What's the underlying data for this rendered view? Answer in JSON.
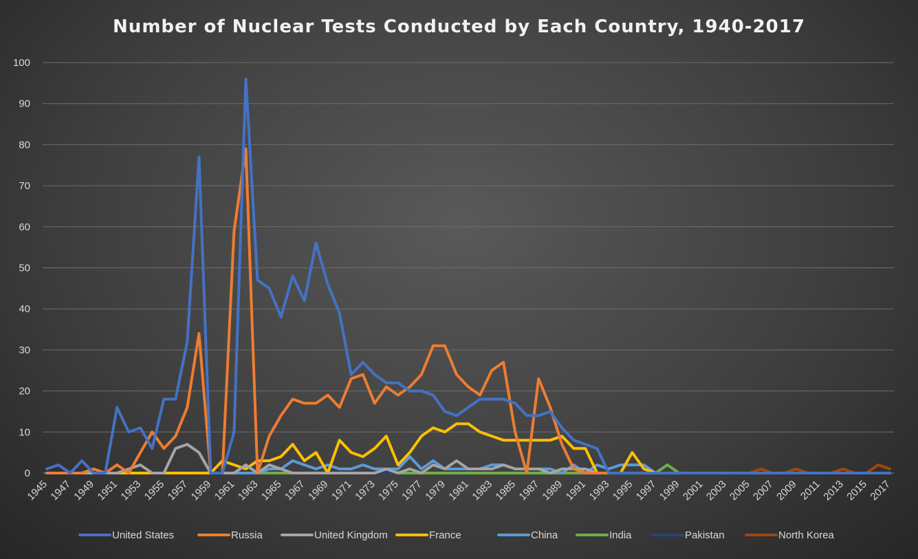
{
  "chart_data": {
    "type": "line",
    "title": "Number of Nuclear Tests Conducted by Each Country, 1940-2017",
    "xlabel": "",
    "ylabel": "",
    "xlim": [
      1945,
      2017
    ],
    "ylim": [
      0,
      100
    ],
    "y_ticks": [
      0,
      10,
      20,
      30,
      40,
      50,
      60,
      70,
      80,
      90,
      100
    ],
    "x_tick_labels": [
      "1945",
      "1947",
      "1949",
      "1951",
      "1953",
      "1955",
      "1957",
      "1959",
      "1961",
      "1963",
      "1965",
      "1967",
      "1969",
      "1971",
      "1973",
      "1975",
      "1977",
      "1979",
      "1981",
      "1983",
      "1985",
      "1987",
      "1989",
      "1991",
      "1993",
      "1995",
      "1997",
      "1999",
      "2001",
      "2003",
      "2005",
      "2007",
      "2009",
      "2011",
      "2013",
      "2015",
      "2017"
    ],
    "grid": "horizontal",
    "legend_position": "bottom",
    "colors": {
      "United States": "#4472c4",
      "Russia": "#ed7d31",
      "United Kingdom": "#a5a5a5",
      "France": "#ffc000",
      "China": "#5b9bd5",
      "India": "#70ad47",
      "Pakistan": "#264478",
      "North Korea": "#9e480e"
    },
    "x": [
      1945,
      1946,
      1947,
      1948,
      1949,
      1950,
      1951,
      1952,
      1953,
      1954,
      1955,
      1956,
      1957,
      1958,
      1959,
      1960,
      1961,
      1962,
      1963,
      1964,
      1965,
      1966,
      1967,
      1968,
      1969,
      1970,
      1971,
      1972,
      1973,
      1974,
      1975,
      1976,
      1977,
      1978,
      1979,
      1980,
      1981,
      1982,
      1983,
      1984,
      1985,
      1986,
      1987,
      1988,
      1989,
      1990,
      1991,
      1992,
      1993,
      1994,
      1995,
      1996,
      1997,
      1998,
      1999,
      2000,
      2001,
      2002,
      2003,
      2004,
      2005,
      2006,
      2007,
      2008,
      2009,
      2010,
      2011,
      2012,
      2013,
      2014,
      2015,
      2016,
      2017
    ],
    "series": [
      {
        "name": "United States",
        "values": [
          1,
          2,
          0,
          3,
          0,
          0,
          16,
          10,
          11,
          6,
          18,
          18,
          32,
          77,
          0,
          0,
          10,
          96,
          47,
          45,
          38,
          48,
          42,
          56,
          46,
          39,
          24,
          27,
          24,
          22,
          22,
          20,
          20,
          19,
          15,
          14,
          16,
          18,
          18,
          18,
          17,
          14,
          14,
          15,
          11,
          8,
          7,
          6,
          0,
          0,
          0,
          0,
          0,
          0,
          0,
          0,
          0,
          0,
          0,
          0,
          0,
          0,
          0,
          0,
          0,
          0,
          0,
          0,
          0,
          0,
          0,
          0,
          0
        ]
      },
      {
        "name": "Russia",
        "values": [
          0,
          0,
          0,
          0,
          1,
          0,
          2,
          0,
          5,
          10,
          6,
          9,
          16,
          34,
          0,
          0,
          59,
          79,
          0,
          9,
          14,
          18,
          17,
          17,
          19,
          16,
          23,
          24,
          17,
          21,
          19,
          21,
          24,
          31,
          31,
          24,
          21,
          19,
          25,
          27,
          10,
          0,
          23,
          16,
          7,
          1,
          0,
          0,
          0,
          0,
          0,
          0,
          0,
          0,
          0,
          0,
          0,
          0,
          0,
          0,
          0,
          0,
          0,
          0,
          0,
          0,
          0,
          0,
          0,
          0,
          0,
          0,
          0
        ]
      },
      {
        "name": "United Kingdom",
        "values": [
          0,
          0,
          0,
          0,
          0,
          0,
          0,
          1,
          2,
          0,
          0,
          6,
          7,
          5,
          0,
          0,
          0,
          2,
          0,
          2,
          1,
          0,
          0,
          0,
          0,
          0,
          0,
          0,
          0,
          1,
          0,
          1,
          0,
          2,
          1,
          3,
          1,
          1,
          1,
          2,
          1,
          1,
          1,
          0,
          1,
          1,
          1,
          0,
          0,
          0,
          0,
          0,
          0,
          0,
          0,
          0,
          0,
          0,
          0,
          0,
          0,
          0,
          0,
          0,
          0,
          0,
          0,
          0,
          0,
          0,
          0,
          0,
          0
        ]
      },
      {
        "name": "France",
        "values": [
          0,
          0,
          0,
          0,
          0,
          0,
          0,
          0,
          0,
          0,
          0,
          0,
          0,
          0,
          0,
          3,
          2,
          1,
          3,
          3,
          4,
          7,
          3,
          5,
          0,
          8,
          5,
          4,
          6,
          9,
          2,
          5,
          9,
          11,
          10,
          12,
          12,
          10,
          9,
          8,
          8,
          8,
          8,
          8,
          9,
          6,
          6,
          0,
          0,
          0,
          5,
          1,
          0,
          0,
          0,
          0,
          0,
          0,
          0,
          0,
          0,
          0,
          0,
          0,
          0,
          0,
          0,
          0,
          0,
          0,
          0,
          0,
          0
        ]
      },
      {
        "name": "China",
        "values": [
          0,
          0,
          0,
          0,
          0,
          0,
          0,
          0,
          0,
          0,
          0,
          0,
          0,
          0,
          0,
          0,
          0,
          0,
          0,
          1,
          1,
          3,
          2,
          1,
          2,
          1,
          1,
          2,
          1,
          1,
          1,
          4,
          1,
          3,
          1,
          1,
          1,
          1,
          2,
          2,
          1,
          1,
          1,
          1,
          0,
          2,
          0,
          2,
          1,
          2,
          2,
          2,
          0,
          0,
          0,
          0,
          0,
          0,
          0,
          0,
          0,
          0,
          0,
          0,
          0,
          0,
          0,
          0,
          0,
          0,
          0,
          0,
          0
        ]
      },
      {
        "name": "India",
        "values": [
          0,
          0,
          0,
          0,
          0,
          0,
          0,
          0,
          0,
          0,
          0,
          0,
          0,
          0,
          0,
          0,
          0,
          0,
          0,
          0,
          0,
          0,
          0,
          0,
          0,
          0,
          0,
          0,
          0,
          1,
          0,
          0,
          0,
          0,
          0,
          0,
          0,
          0,
          0,
          0,
          0,
          0,
          0,
          0,
          0,
          0,
          0,
          0,
          0,
          0,
          0,
          0,
          0,
          2,
          0,
          0,
          0,
          0,
          0,
          0,
          0,
          0,
          0,
          0,
          0,
          0,
          0,
          0,
          0,
          0,
          0,
          0,
          0
        ]
      },
      {
        "name": "Pakistan",
        "values": [
          0,
          0,
          0,
          0,
          0,
          0,
          0,
          0,
          0,
          0,
          0,
          0,
          0,
          0,
          0,
          0,
          0,
          0,
          0,
          0,
          0,
          0,
          0,
          0,
          0,
          0,
          0,
          0,
          0,
          0,
          0,
          0,
          0,
          0,
          0,
          0,
          0,
          0,
          0,
          0,
          0,
          0,
          0,
          0,
          0,
          0,
          0,
          0,
          0,
          0,
          0,
          0,
          0,
          2,
          0,
          0,
          0,
          0,
          0,
          0,
          0,
          0,
          0,
          0,
          0,
          0,
          0,
          0,
          0,
          0,
          0,
          0,
          0
        ]
      },
      {
        "name": "North Korea",
        "values": [
          0,
          0,
          0,
          0,
          0,
          0,
          0,
          0,
          0,
          0,
          0,
          0,
          0,
          0,
          0,
          0,
          0,
          0,
          0,
          0,
          0,
          0,
          0,
          0,
          0,
          0,
          0,
          0,
          0,
          0,
          0,
          0,
          0,
          0,
          0,
          0,
          0,
          0,
          0,
          0,
          0,
          0,
          0,
          0,
          0,
          0,
          0,
          0,
          0,
          0,
          0,
          0,
          0,
          0,
          0,
          0,
          0,
          0,
          0,
          0,
          0,
          1,
          0,
          0,
          1,
          0,
          0,
          0,
          1,
          0,
          0,
          2,
          1
        ]
      }
    ]
  }
}
